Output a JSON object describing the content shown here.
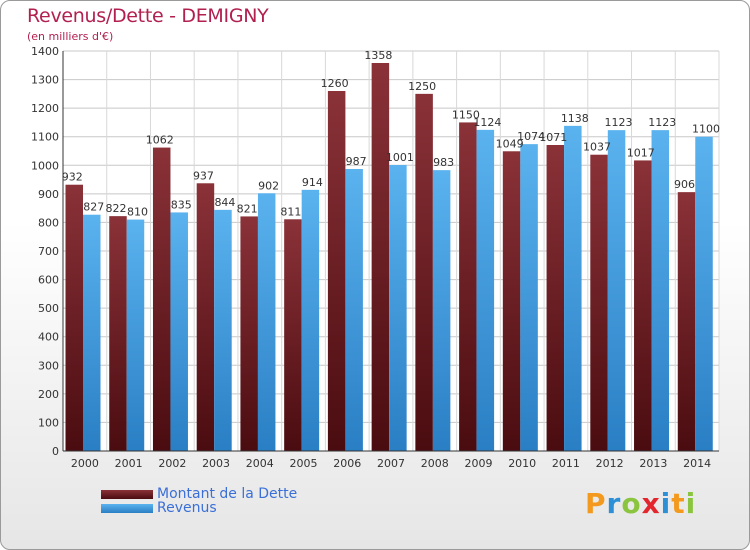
{
  "header": {
    "title": "Revenus/Dette - DEMIGNY",
    "subtitle": "(en milliers d'€)"
  },
  "logo": {
    "letters": [
      "P",
      "r",
      "o",
      "x",
      "i",
      "t",
      "i"
    ],
    "colors": [
      "#f39a1e",
      "#2d8fd6",
      "#8bc53f",
      "#e3262d",
      "#2d8fd6",
      "#f39a1e",
      "#8bc53f"
    ]
  },
  "colors": {
    "dette": "#7a2a2e",
    "revenus": "#4aa3e6"
  },
  "chart_data": {
    "type": "bar",
    "categories": [
      "2000",
      "2001",
      "2002",
      "2003",
      "2004",
      "2005",
      "2006",
      "2007",
      "2008",
      "2009",
      "2010",
      "2011",
      "2012",
      "2013",
      "2014"
    ],
    "series": [
      {
        "name": "Montant de la Dette",
        "values": [
          932,
          822,
          1062,
          937,
          821,
          811,
          1260,
          1358,
          1250,
          1150,
          1049,
          1071,
          1037,
          1017,
          906
        ]
      },
      {
        "name": "Revenus",
        "values": [
          827,
          810,
          835,
          844,
          902,
          914,
          987,
          1001,
          983,
          1124,
          1074,
          1138,
          1123,
          1123,
          1100
        ]
      }
    ],
    "yticks": [
      0,
      100,
      200,
      300,
      400,
      500,
      600,
      700,
      800,
      900,
      1000,
      1100,
      1200,
      1300,
      1400
    ],
    "ylim": [
      0,
      1400
    ],
    "grid": true,
    "legend": "bottom-left"
  }
}
